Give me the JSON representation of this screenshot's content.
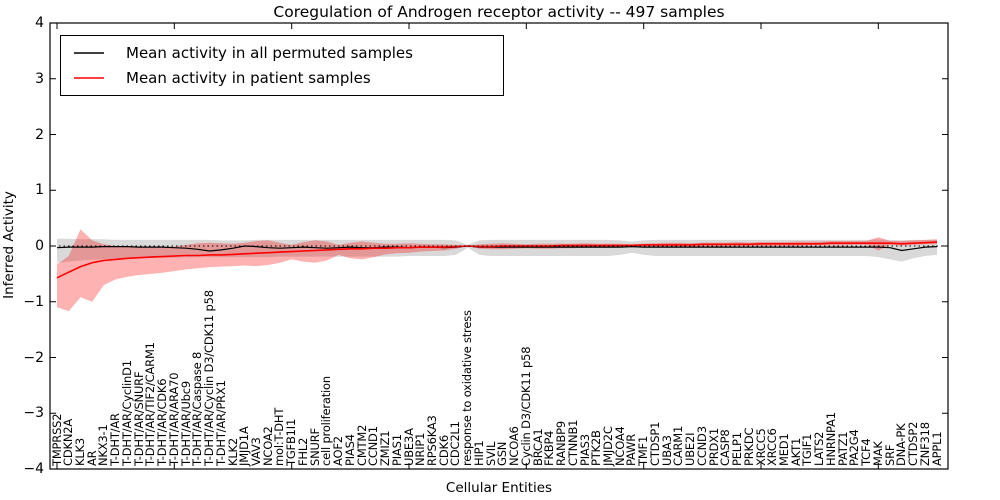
{
  "chart_data": {
    "type": "line",
    "title": "Coregulation of Androgen receptor activity -- 497 samples",
    "xlabel": "Cellular Entities",
    "ylabel": "Inferred Activity",
    "ylim": [
      -4,
      4
    ],
    "yticks": [
      4,
      3,
      2,
      1,
      0,
      -1,
      -2,
      -3,
      -4
    ],
    "x_major_tick_every": 10,
    "grid": false,
    "legend_position": "upper left",
    "zero_reference_line": {
      "style": "dotted",
      "color": "#000000",
      "y": 0
    },
    "categories": [
      "TMPRSS2",
      "CDKN2A",
      "KLK3",
      "AR",
      "NKX3-1",
      "T-DHT/AR",
      "T-DHT/AR/CyclinD1",
      "T-DHT/AR/SNURF",
      "T-DHT/AR/TIF2/CARM1",
      "T-DHT/AR/CDK6",
      "T-DHT/AR/ARA70",
      "T-DHT/AR/Ubc9",
      "T-DHT/AR/Caspase 8",
      "T-DHT/AR/Cyclin D3/CDK11 p58",
      "T-DHT/AR/PRX1",
      "KLK2",
      "JMJD1A",
      "VAV3",
      "NCOA2",
      "mol:T-DHT",
      "TGFB1I1",
      "FHL2",
      "SNURF",
      "cell proliferation",
      "AOF2",
      "PIAS4",
      "CMTM2",
      "CCND1",
      "ZMIZ1",
      "PIAS1",
      "UBE3A",
      "NRIP1",
      "RPS6KA3",
      "CDK6",
      "CDC2L1",
      "response to oxidative stress",
      "HIP1",
      "SVIL",
      "GSN",
      "NCOA6",
      "Cyclin D3/CDK11 p58",
      "BRCA1",
      "FKBP4",
      "RANBP9",
      "CTNNB1",
      "PIAS3",
      "PTK2B",
      "JMJD2C",
      "NCOA4",
      "PAWR",
      "TMF1",
      "CTDSP1",
      "UBA3",
      "CARM1",
      "UBE2I",
      "CCND3",
      "PRDX1",
      "CASP8",
      "PELP1",
      "PRKDC",
      "XRCC5",
      "XRCC6",
      "MED1",
      "AKT1",
      "TGIF1",
      "LATS2",
      "HNRNPA1",
      "PATZ1",
      "PA2G4",
      "TCF4",
      "MAK",
      "SRF",
      "DNA-PK",
      "CTDSP2",
      "ZNF318",
      "APPL1"
    ],
    "series": [
      {
        "name": "Mean activity in all permuted samples",
        "color": "#000000",
        "width": 1.2,
        "values": [
          -0.03,
          -0.02,
          -0.02,
          -0.02,
          -0.01,
          -0.01,
          -0.01,
          -0.02,
          -0.02,
          -0.02,
          -0.03,
          -0.04,
          -0.06,
          -0.09,
          -0.07,
          -0.04,
          0.0,
          -0.01,
          -0.03,
          -0.04,
          -0.03,
          -0.02,
          -0.03,
          -0.04,
          -0.03,
          -0.02,
          -0.03,
          -0.03,
          -0.02,
          -0.02,
          -0.03,
          -0.02,
          -0.02,
          -0.03,
          -0.02,
          0.0,
          -0.02,
          -0.02,
          -0.02,
          -0.02,
          -0.02,
          -0.02,
          -0.02,
          -0.02,
          -0.02,
          -0.02,
          -0.02,
          -0.02,
          -0.02,
          -0.01,
          -0.02,
          -0.02,
          -0.02,
          -0.02,
          -0.02,
          -0.02,
          -0.02,
          -0.02,
          -0.02,
          -0.02,
          -0.02,
          -0.02,
          -0.02,
          -0.02,
          -0.02,
          -0.02,
          -0.02,
          -0.02,
          -0.02,
          -0.02,
          -0.02,
          -0.03,
          -0.08,
          -0.05,
          -0.02,
          -0.01
        ]
      },
      {
        "name": "Mean activity in patient samples",
        "color": "#ff0000",
        "width": 1.6,
        "values": [
          -0.57,
          -0.47,
          -0.37,
          -0.3,
          -0.26,
          -0.24,
          -0.22,
          -0.21,
          -0.2,
          -0.19,
          -0.18,
          -0.17,
          -0.17,
          -0.16,
          -0.16,
          -0.15,
          -0.14,
          -0.13,
          -0.12,
          -0.11,
          -0.1,
          -0.09,
          -0.08,
          -0.07,
          -0.06,
          -0.05,
          -0.05,
          -0.04,
          -0.04,
          -0.03,
          -0.03,
          -0.02,
          -0.02,
          -0.02,
          -0.01,
          0.0,
          -0.01,
          -0.01,
          0.0,
          0.0,
          0.0,
          0.0,
          0.0,
          0.01,
          0.01,
          0.01,
          0.01,
          0.01,
          0.01,
          0.01,
          0.02,
          0.02,
          0.02,
          0.02,
          0.02,
          0.03,
          0.03,
          0.03,
          0.03,
          0.03,
          0.04,
          0.04,
          0.04,
          0.04,
          0.04,
          0.04,
          0.05,
          0.05,
          0.05,
          0.05,
          0.05,
          0.05,
          0.04,
          0.05,
          0.06,
          0.07
        ]
      }
    ],
    "bands": [
      {
        "name": "permuted-samples-std-band",
        "color": "#808080",
        "opacity": 0.3,
        "upper": [
          0.13,
          0.13,
          0.12,
          0.12,
          0.12,
          0.11,
          0.11,
          0.11,
          0.11,
          0.11,
          0.11,
          0.11,
          0.11,
          0.11,
          0.1,
          0.1,
          0.1,
          0.11,
          0.11,
          0.11,
          0.11,
          0.11,
          0.11,
          0.11,
          0.11,
          0.11,
          0.11,
          0.11,
          0.11,
          0.11,
          0.11,
          0.11,
          0.11,
          0.11,
          0.1,
          0.02,
          0.1,
          0.11,
          0.11,
          0.11,
          0.11,
          0.11,
          0.11,
          0.11,
          0.11,
          0.11,
          0.11,
          0.11,
          0.1,
          0.08,
          0.1,
          0.11,
          0.11,
          0.11,
          0.11,
          0.11,
          0.11,
          0.11,
          0.11,
          0.11,
          0.11,
          0.11,
          0.11,
          0.11,
          0.11,
          0.11,
          0.11,
          0.11,
          0.11,
          0.11,
          0.12,
          0.11,
          0.1,
          0.11,
          0.11,
          0.11
        ],
        "lower": [
          -0.3,
          -0.28,
          -0.26,
          -0.25,
          -0.24,
          -0.23,
          -0.22,
          -0.22,
          -0.21,
          -0.21,
          -0.21,
          -0.2,
          -0.2,
          -0.2,
          -0.2,
          -0.2,
          -0.2,
          -0.2,
          -0.2,
          -0.19,
          -0.19,
          -0.19,
          -0.19,
          -0.19,
          -0.19,
          -0.19,
          -0.19,
          -0.19,
          -0.19,
          -0.19,
          -0.18,
          -0.18,
          -0.18,
          -0.18,
          -0.16,
          -0.03,
          -0.16,
          -0.18,
          -0.18,
          -0.18,
          -0.18,
          -0.18,
          -0.18,
          -0.18,
          -0.18,
          -0.18,
          -0.18,
          -0.18,
          -0.16,
          -0.12,
          -0.16,
          -0.18,
          -0.18,
          -0.18,
          -0.18,
          -0.18,
          -0.18,
          -0.18,
          -0.18,
          -0.18,
          -0.18,
          -0.18,
          -0.18,
          -0.18,
          -0.18,
          -0.18,
          -0.18,
          -0.18,
          -0.18,
          -0.18,
          -0.2,
          -0.24,
          -0.28,
          -0.22,
          -0.18,
          -0.16
        ]
      },
      {
        "name": "patient-samples-std-band",
        "color": "#ff0000",
        "opacity": 0.3,
        "upper": [
          -0.33,
          -0.18,
          0.3,
          0.1,
          0.03,
          0.0,
          -0.01,
          -0.02,
          -0.02,
          -0.02,
          -0.01,
          0.02,
          0.05,
          0.06,
          0.05,
          0.04,
          0.06,
          0.09,
          0.1,
          0.06,
          0.02,
          0.07,
          0.1,
          0.08,
          0.02,
          0.06,
          0.08,
          0.06,
          0.04,
          0.04,
          0.05,
          0.04,
          0.03,
          0.03,
          0.02,
          0.0,
          0.03,
          0.04,
          0.05,
          0.04,
          0.03,
          0.04,
          0.04,
          0.04,
          0.04,
          0.05,
          0.04,
          0.04,
          0.04,
          0.03,
          0.04,
          0.05,
          0.06,
          0.06,
          0.05,
          0.06,
          0.06,
          0.06,
          0.07,
          0.06,
          0.07,
          0.07,
          0.07,
          0.08,
          0.08,
          0.08,
          0.09,
          0.09,
          0.09,
          0.09,
          0.16,
          0.09,
          0.09,
          0.1,
          0.11,
          0.12
        ],
        "lower": [
          -1.1,
          -1.17,
          -0.92,
          -1.0,
          -0.7,
          -0.6,
          -0.55,
          -0.52,
          -0.5,
          -0.48,
          -0.45,
          -0.42,
          -0.4,
          -0.38,
          -0.37,
          -0.36,
          -0.35,
          -0.36,
          -0.34,
          -0.3,
          -0.24,
          -0.28,
          -0.3,
          -0.26,
          -0.16,
          -0.22,
          -0.24,
          -0.2,
          -0.15,
          -0.13,
          -0.12,
          -0.1,
          -0.09,
          -0.08,
          -0.05,
          0.0,
          -0.05,
          -0.06,
          -0.06,
          -0.05,
          -0.04,
          -0.05,
          -0.05,
          -0.04,
          -0.04,
          -0.03,
          -0.03,
          -0.03,
          -0.02,
          -0.01,
          -0.02,
          -0.02,
          -0.02,
          -0.02,
          -0.01,
          -0.01,
          -0.01,
          -0.01,
          0.0,
          0.0,
          0.0,
          0.0,
          0.0,
          0.0,
          0.01,
          0.01,
          0.01,
          0.01,
          0.02,
          0.02,
          -0.08,
          0.02,
          0.01,
          0.02,
          0.03,
          0.03
        ]
      }
    ]
  },
  "legend": {
    "entries": [
      {
        "label": "Mean activity in all permuted samples",
        "color": "#000000"
      },
      {
        "label": "Mean activity in patient samples",
        "color": "#ff0000"
      }
    ]
  }
}
